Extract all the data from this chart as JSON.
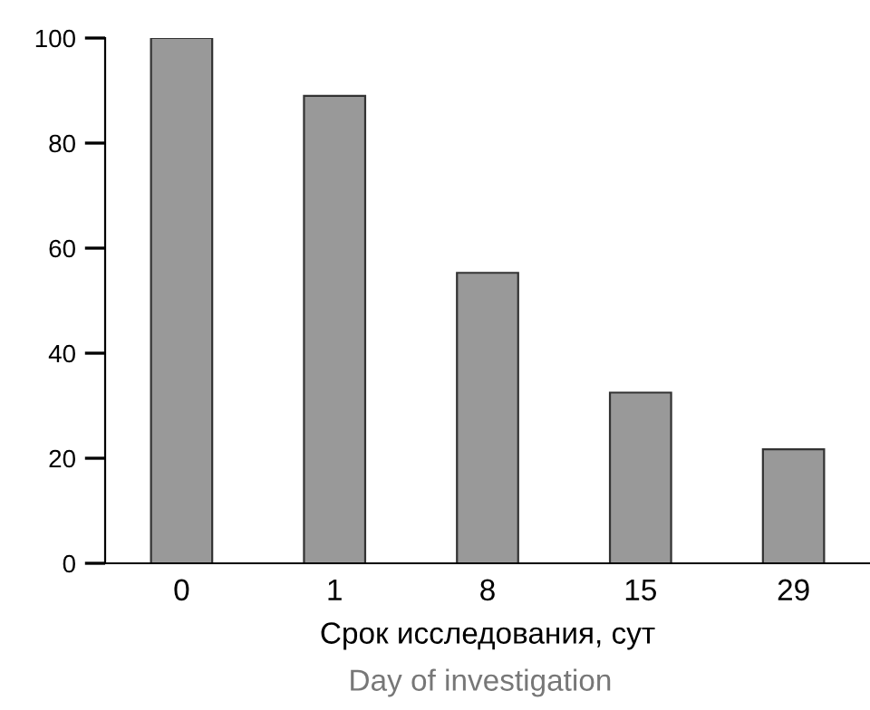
{
  "chart_data": {
    "type": "bar",
    "categories": [
      "0",
      "1",
      "8",
      "15",
      "29"
    ],
    "values": [
      100,
      89,
      55.3,
      32.5,
      21.7
    ],
    "color": "#999999",
    "xlabel": "Срок исследования, сут",
    "annotations": [
      "Day of investigation"
    ],
    "ylim": [
      0,
      100
    ],
    "yticks": [
      0,
      20,
      40,
      60,
      80,
      100
    ],
    "grid": false,
    "legend": false
  }
}
